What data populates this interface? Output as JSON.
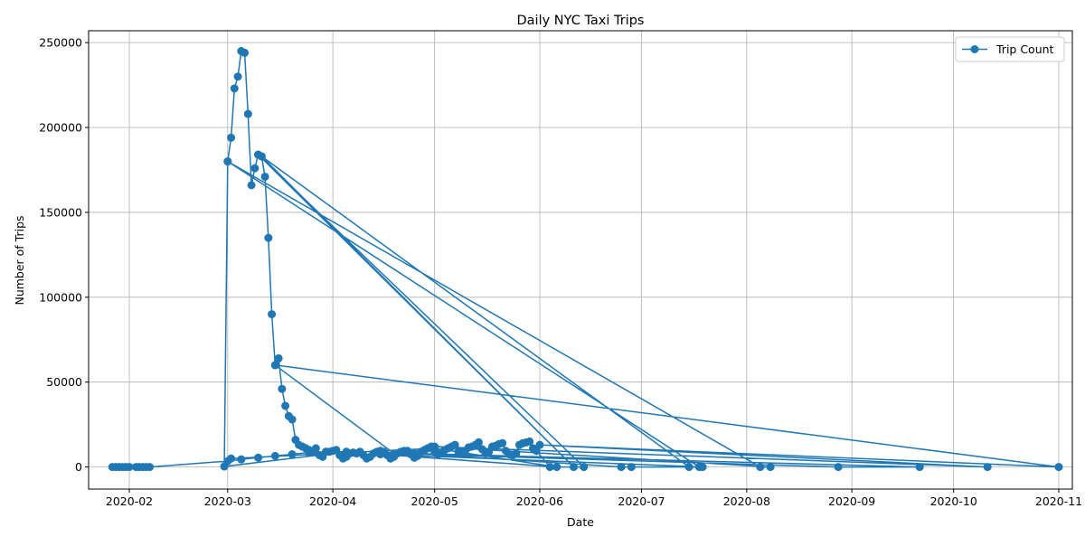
{
  "chart_data": {
    "type": "line",
    "title": "Daily NYC Taxi Trips",
    "xlabel": "Date",
    "ylabel": "Number of Trips",
    "xlim": [
      "2020-01-20",
      "2020-11-05"
    ],
    "ylim": [
      -13000,
      257000
    ],
    "x_ticks": [
      "2020-02",
      "2020-03",
      "2020-04",
      "2020-05",
      "2020-06",
      "2020-07",
      "2020-08",
      "2020-09",
      "2020-10",
      "2020-11"
    ],
    "y_ticks": [
      0,
      50000,
      100000,
      150000,
      200000,
      250000
    ],
    "grid": true,
    "legend_position": "top-right",
    "color": "#1f77b4",
    "series": [
      {
        "name": "Trip Count",
        "points": [
          [
            "2020-01-27",
            0
          ],
          [
            "2020-01-28",
            0
          ],
          [
            "2020-01-29",
            0
          ],
          [
            "2020-01-30",
            0
          ],
          [
            "2020-01-31",
            0
          ],
          [
            "2020-02-01",
            0
          ],
          [
            "2020-02-03",
            0
          ],
          [
            "2020-02-04",
            0
          ],
          [
            "2020-02-05",
            0
          ],
          [
            "2020-02-06",
            0
          ],
          [
            "2020-02-07",
            0
          ],
          [
            "2020-03-01",
            3500
          ],
          [
            "2020-03-05",
            4500
          ],
          [
            "2020-03-10",
            5500
          ],
          [
            "2020-03-15",
            6500
          ],
          [
            "2020-03-20",
            7500
          ],
          [
            "2020-03-25",
            8500
          ],
          [
            "2020-03-30",
            9000
          ],
          [
            "2020-04-05",
            9000
          ],
          [
            "2020-02-29",
            300
          ],
          [
            "2020-03-01",
            180000
          ],
          [
            "2020-03-02",
            194000
          ],
          [
            "2020-03-03",
            223000
          ],
          [
            "2020-03-04",
            230000
          ],
          [
            "2020-03-05",
            245000
          ],
          [
            "2020-03-06",
            244000
          ],
          [
            "2020-03-07",
            208000
          ],
          [
            "2020-03-08",
            166000
          ],
          [
            "2020-03-09",
            176000
          ],
          [
            "2020-03-10",
            184000
          ],
          [
            "2020-03-11",
            183000
          ],
          [
            "2020-03-12",
            171000
          ],
          [
            "2020-03-13",
            135000
          ],
          [
            "2020-03-14",
            90000
          ],
          [
            "2020-03-15",
            60000
          ],
          [
            "2020-03-16",
            64000
          ],
          [
            "2020-03-17",
            46000
          ],
          [
            "2020-03-18",
            36000
          ],
          [
            "2020-03-19",
            30000
          ],
          [
            "2020-03-20",
            28000
          ],
          [
            "2020-03-21",
            16000
          ],
          [
            "2020-03-22",
            13000
          ],
          [
            "2020-03-23",
            12000
          ],
          [
            "2020-03-24",
            11000
          ],
          [
            "2020-03-25",
            10000
          ],
          [
            "2020-03-26",
            9000
          ],
          [
            "2020-03-27",
            11000
          ],
          [
            "2020-03-28",
            7000
          ],
          [
            "2020-03-29",
            6000
          ],
          [
            "2020-03-30",
            9000
          ],
          [
            "2020-03-31",
            9000
          ],
          [
            "2020-04-01",
            9500
          ],
          [
            "2020-04-02",
            10000
          ],
          [
            "2020-04-03",
            7000
          ],
          [
            "2020-04-04",
            5000
          ],
          [
            "2020-04-05",
            6000
          ],
          [
            "2020-04-06",
            8000
          ],
          [
            "2020-04-07",
            8500
          ],
          [
            "2020-04-08",
            8000
          ],
          [
            "2020-04-09",
            9000
          ],
          [
            "2020-04-10",
            7000
          ],
          [
            "2020-04-11",
            5000
          ],
          [
            "2020-04-12",
            6000
          ],
          [
            "2020-04-13",
            8000
          ],
          [
            "2020-04-14",
            9000
          ],
          [
            "2020-04-15",
            9500
          ],
          [
            "2020-04-16",
            9000
          ],
          [
            "2020-04-17",
            7000
          ],
          [
            "2020-04-18",
            5000
          ],
          [
            "2020-04-19",
            6000
          ],
          [
            "2020-04-20",
            8000
          ],
          [
            "2020-04-21",
            9000
          ],
          [
            "2020-04-22",
            9500
          ],
          [
            "2020-04-23",
            9500
          ],
          [
            "2020-04-24",
            7500
          ],
          [
            "2020-04-25",
            5500
          ],
          [
            "2020-04-26",
            6500
          ],
          [
            "2020-04-27",
            9000
          ],
          [
            "2020-04-28",
            10000
          ],
          [
            "2020-04-29",
            11000
          ],
          [
            "2020-04-30",
            12000
          ],
          [
            "2020-05-01",
            9000
          ],
          [
            "2020-05-02",
            7500
          ],
          [
            "2020-05-03",
            8500
          ],
          [
            "2020-05-04",
            10000
          ],
          [
            "2020-05-05",
            11000
          ],
          [
            "2020-05-06",
            12000
          ],
          [
            "2020-05-07",
            13000
          ],
          [
            "2020-05-08",
            9000
          ],
          [
            "2020-05-09",
            8000
          ],
          [
            "2020-05-10",
            9500
          ],
          [
            "2020-05-11",
            11500
          ],
          [
            "2020-05-12",
            12000
          ],
          [
            "2020-05-13",
            13000
          ],
          [
            "2020-05-14",
            14500
          ],
          [
            "2020-05-15",
            10500
          ],
          [
            "2020-05-16",
            8000
          ],
          [
            "2020-05-17",
            9000
          ],
          [
            "2020-05-18",
            12000
          ],
          [
            "2020-05-19",
            12500
          ],
          [
            "2020-05-20",
            13500
          ],
          [
            "2020-05-21",
            14000
          ],
          [
            "2020-05-22",
            9500
          ],
          [
            "2020-05-23",
            7500
          ],
          [
            "2020-05-24",
            7000
          ],
          [
            "2020-05-25",
            8000
          ],
          [
            "2020-05-26",
            13000
          ],
          [
            "2020-05-27",
            14000
          ],
          [
            "2020-05-28",
            14500
          ],
          [
            "2020-05-29",
            15000
          ],
          [
            "2020-05-30",
            11000
          ],
          [
            "2020-05-31",
            9500
          ],
          [
            "2020-06-04",
            0
          ],
          [
            "2020-06-14",
            0
          ],
          [
            "2020-03-10",
            184000
          ],
          [
            "2020-06-11",
            0
          ],
          [
            "2020-03-11",
            183000
          ],
          [
            "2020-07-15",
            0
          ],
          [
            "2020-07-18",
            0
          ],
          [
            "2020-03-01",
            180000
          ],
          [
            "2020-08-05",
            0
          ],
          [
            "2020-08-08",
            0
          ],
          [
            "2020-05-01",
            12000
          ],
          [
            "2020-10-11",
            0
          ],
          [
            "2020-06-01",
            13000
          ],
          [
            "2020-11-01",
            0
          ],
          [
            "2020-03-15",
            60000
          ],
          [
            "2020-04-19",
            8000
          ],
          [
            "2020-08-28",
            0
          ],
          [
            "2020-09-21",
            0
          ],
          [
            "2020-04-25",
            8000
          ],
          [
            "2020-06-25",
            0
          ],
          [
            "2020-06-28",
            0
          ],
          [
            "2020-07-19",
            0
          ],
          [
            "2020-04-15",
            7500
          ],
          [
            "2020-06-06",
            0
          ],
          [
            "2020-05-01",
            11000
          ],
          [
            "2020-03-02",
            5000
          ]
        ]
      }
    ]
  }
}
